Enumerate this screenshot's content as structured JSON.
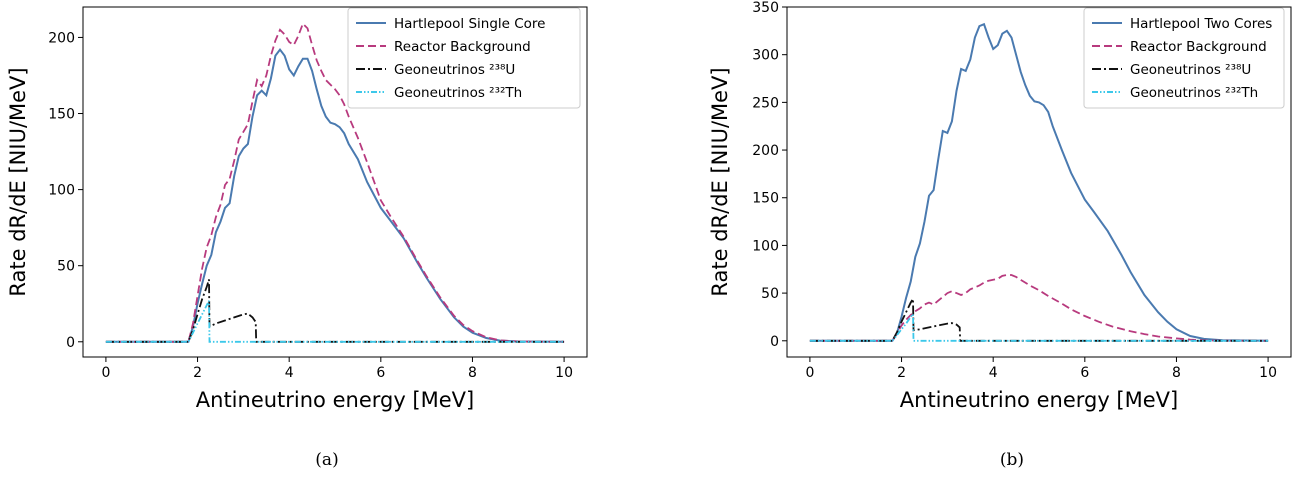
{
  "colors": {
    "signal": "#4a7ab0",
    "reactor": "#b83a7e",
    "uranium": "#111111",
    "thorium": "#3cc8ea"
  },
  "chart_data": [
    {
      "type": "line",
      "caption": "(a)",
      "xlabel": "Antineutrino energy [MeV]",
      "ylabel": "Rate dR/dE [NIU/MeV]",
      "xlim": [
        -0.5,
        10.5
      ],
      "ylim": [
        -10,
        220
      ],
      "xticks": [
        0,
        2,
        4,
        6,
        8,
        10
      ],
      "yticks": [
        0,
        50,
        100,
        150,
        200
      ],
      "grid": false,
      "legend_position": "top-right",
      "series": [
        {
          "name": "Hartlepool Single Core",
          "color_key": "signal",
          "style": "solid",
          "points": [
            [
              0,
              0
            ],
            [
              1.8,
              0
            ],
            [
              1.9,
              10
            ],
            [
              2.0,
              25
            ],
            [
              2.1,
              38
            ],
            [
              2.2,
              50
            ],
            [
              2.3,
              57
            ],
            [
              2.4,
              72
            ],
            [
              2.5,
              79
            ],
            [
              2.6,
              88
            ],
            [
              2.7,
              91
            ],
            [
              2.8,
              109
            ],
            [
              2.9,
              122
            ],
            [
              3.0,
              127
            ],
            [
              3.1,
              130
            ],
            [
              3.2,
              148
            ],
            [
              3.3,
              162
            ],
            [
              3.4,
              165
            ],
            [
              3.5,
              162
            ],
            [
              3.6,
              173
            ],
            [
              3.7,
              188
            ],
            [
              3.8,
              192
            ],
            [
              3.9,
              188
            ],
            [
              4.0,
              179
            ],
            [
              4.1,
              175
            ],
            [
              4.2,
              181
            ],
            [
              4.3,
              186
            ],
            [
              4.4,
              186
            ],
            [
              4.5,
              178
            ],
            [
              4.6,
              166
            ],
            [
              4.7,
              155
            ],
            [
              4.8,
              148
            ],
            [
              4.9,
              144
            ],
            [
              5.0,
              143
            ],
            [
              5.1,
              141
            ],
            [
              5.2,
              137
            ],
            [
              5.3,
              130
            ],
            [
              5.5,
              120
            ],
            [
              5.7,
              105
            ],
            [
              6.0,
              88
            ],
            [
              6.2,
              80
            ],
            [
              6.5,
              68
            ],
            [
              6.8,
              52
            ],
            [
              7.0,
              42
            ],
            [
              7.3,
              28
            ],
            [
              7.6,
              16
            ],
            [
              7.8,
              10
            ],
            [
              8.0,
              6
            ],
            [
              8.3,
              2.5
            ],
            [
              8.6,
              0.8
            ],
            [
              9.0,
              0.2
            ],
            [
              10,
              0
            ]
          ]
        },
        {
          "name": "Reactor Background",
          "color_key": "reactor",
          "style": "dashed",
          "points": [
            [
              0,
              0
            ],
            [
              1.8,
              0
            ],
            [
              1.9,
              12
            ],
            [
              2.0,
              30
            ],
            [
              2.1,
              48
            ],
            [
              2.2,
              62
            ],
            [
              2.3,
              70
            ],
            [
              2.4,
              82
            ],
            [
              2.5,
              90
            ],
            [
              2.6,
              103
            ],
            [
              2.7,
              107
            ],
            [
              2.8,
              119
            ],
            [
              2.9,
              133
            ],
            [
              3.0,
              138
            ],
            [
              3.1,
              143
            ],
            [
              3.2,
              158
            ],
            [
              3.3,
              172
            ],
            [
              3.4,
              168
            ],
            [
              3.5,
              175
            ],
            [
              3.6,
              188
            ],
            [
              3.7,
              198
            ],
            [
              3.8,
              205
            ],
            [
              3.9,
              202
            ],
            [
              4.0,
              197
            ],
            [
              4.1,
              195
            ],
            [
              4.2,
              201
            ],
            [
              4.3,
              209
            ],
            [
              4.4,
              206
            ],
            [
              4.5,
              195
            ],
            [
              4.6,
              185
            ],
            [
              4.7,
              178
            ],
            [
              4.8,
              172
            ],
            [
              4.9,
              169
            ],
            [
              5.0,
              166
            ],
            [
              5.1,
              162
            ],
            [
              5.2,
              156
            ],
            [
              5.3,
              148
            ],
            [
              5.5,
              134
            ],
            [
              5.7,
              118
            ],
            [
              6.0,
              93
            ],
            [
              6.2,
              83
            ],
            [
              6.5,
              69
            ],
            [
              6.8,
              53
            ],
            [
              7.0,
              43
            ],
            [
              7.3,
              29
            ],
            [
              7.6,
              17
            ],
            [
              7.8,
              11
            ],
            [
              8.0,
              7
            ],
            [
              8.3,
              3
            ],
            [
              8.6,
              1
            ],
            [
              9.0,
              0.2
            ],
            [
              10,
              0
            ]
          ]
        },
        {
          "name": "Geoneutrinos ²³⁸U",
          "color_key": "uranium",
          "style": "dashdot",
          "points": [
            [
              0,
              0
            ],
            [
              1.8,
              0
            ],
            [
              1.9,
              8
            ],
            [
              2.0,
              18
            ],
            [
              2.1,
              28
            ],
            [
              2.2,
              36
            ],
            [
              2.25,
              41
            ],
            [
              2.26,
              10
            ],
            [
              2.4,
              12
            ],
            [
              2.6,
              14
            ],
            [
              2.8,
              16
            ],
            [
              3.0,
              18
            ],
            [
              3.1,
              18.5
            ],
            [
              3.2,
              16
            ],
            [
              3.27,
              13
            ],
            [
              3.28,
              0
            ],
            [
              10,
              0
            ]
          ]
        },
        {
          "name": "Geoneutrinos ²³²Th",
          "color_key": "thorium",
          "style": "dashdotdot",
          "points": [
            [
              0,
              0
            ],
            [
              1.8,
              0
            ],
            [
              1.9,
              6
            ],
            [
              2.0,
              12
            ],
            [
              2.1,
              18
            ],
            [
              2.2,
              24
            ],
            [
              2.25,
              27
            ],
            [
              2.26,
              0
            ],
            [
              10,
              0
            ]
          ]
        }
      ]
    },
    {
      "type": "line",
      "caption": "(b)",
      "xlabel": "Antineutrino energy [MeV]",
      "ylabel": "Rate dR/dE [NIU/MeV]",
      "xlim": [
        -0.5,
        10.5
      ],
      "ylim": [
        -17,
        350
      ],
      "xticks": [
        0,
        2,
        4,
        6,
        8,
        10
      ],
      "yticks": [
        0,
        50,
        100,
        150,
        200,
        250,
        300,
        350
      ],
      "grid": false,
      "legend_position": "top-right",
      "series": [
        {
          "name": "Hartlepool Two Cores",
          "color_key": "signal",
          "style": "solid",
          "points": [
            [
              0,
              0
            ],
            [
              1.8,
              0
            ],
            [
              1.9,
              8
            ],
            [
              2.0,
              25
            ],
            [
              2.1,
              45
            ],
            [
              2.2,
              62
            ],
            [
              2.3,
              88
            ],
            [
              2.4,
              102
            ],
            [
              2.5,
              125
            ],
            [
              2.6,
              152
            ],
            [
              2.7,
              158
            ],
            [
              2.8,
              190
            ],
            [
              2.9,
              220
            ],
            [
              3.0,
              218
            ],
            [
              3.1,
              230
            ],
            [
              3.2,
              262
            ],
            [
              3.3,
              285
            ],
            [
              3.4,
              283
            ],
            [
              3.5,
              295
            ],
            [
              3.6,
              318
            ],
            [
              3.7,
              330
            ],
            [
              3.8,
              332
            ],
            [
              3.9,
              318
            ],
            [
              4.0,
              306
            ],
            [
              4.1,
              310
            ],
            [
              4.2,
              322
            ],
            [
              4.3,
              325
            ],
            [
              4.4,
              318
            ],
            [
              4.5,
              300
            ],
            [
              4.6,
              282
            ],
            [
              4.7,
              268
            ],
            [
              4.8,
              257
            ],
            [
              4.9,
              251
            ],
            [
              5.0,
              250
            ],
            [
              5.1,
              247
            ],
            [
              5.2,
              240
            ],
            [
              5.3,
              225
            ],
            [
              5.5,
              200
            ],
            [
              5.7,
              176
            ],
            [
              6.0,
              148
            ],
            [
              6.2,
              135
            ],
            [
              6.5,
              115
            ],
            [
              6.8,
              90
            ],
            [
              7.0,
              72
            ],
            [
              7.3,
              48
            ],
            [
              7.6,
              30
            ],
            [
              7.8,
              20
            ],
            [
              8.0,
              12
            ],
            [
              8.3,
              5
            ],
            [
              8.6,
              2
            ],
            [
              9.0,
              0.5
            ],
            [
              10,
              0
            ]
          ]
        },
        {
          "name": "Reactor Background",
          "color_key": "reactor",
          "style": "dashed",
          "points": [
            [
              0,
              0
            ],
            [
              1.8,
              0
            ],
            [
              1.9,
              8
            ],
            [
              2.0,
              16
            ],
            [
              2.1,
              22
            ],
            [
              2.2,
              27
            ],
            [
              2.3,
              31
            ],
            [
              2.4,
              34
            ],
            [
              2.5,
              38
            ],
            [
              2.6,
              40
            ],
            [
              2.7,
              38
            ],
            [
              2.8,
              42
            ],
            [
              2.9,
              46
            ],
            [
              3.0,
              50
            ],
            [
              3.1,
              52
            ],
            [
              3.2,
              50
            ],
            [
              3.3,
              48
            ],
            [
              3.4,
              50
            ],
            [
              3.5,
              54
            ],
            [
              3.6,
              56
            ],
            [
              3.7,
              58
            ],
            [
              3.8,
              61
            ],
            [
              3.9,
              63
            ],
            [
              4.0,
              64
            ],
            [
              4.1,
              65
            ],
            [
              4.2,
              68
            ],
            [
              4.3,
              69
            ],
            [
              4.4,
              69
            ],
            [
              4.5,
              67
            ],
            [
              4.6,
              64
            ],
            [
              4.7,
              61
            ],
            [
              4.8,
              58
            ],
            [
              5.0,
              53
            ],
            [
              5.2,
              47
            ],
            [
              5.5,
              39
            ],
            [
              5.7,
              33
            ],
            [
              6.0,
              26
            ],
            [
              6.3,
              20
            ],
            [
              6.6,
              15
            ],
            [
              7.0,
              10
            ],
            [
              7.3,
              7
            ],
            [
              7.6,
              4.5
            ],
            [
              8.0,
              2.5
            ],
            [
              8.3,
              1.2
            ],
            [
              8.6,
              0.5
            ],
            [
              9.0,
              0.1
            ],
            [
              10,
              0
            ]
          ]
        },
        {
          "name": "Geoneutrinos ²³⁸U",
          "color_key": "uranium",
          "style": "dashdot",
          "points": [
            [
              0,
              0
            ],
            [
              1.8,
              0
            ],
            [
              1.9,
              9
            ],
            [
              2.0,
              20
            ],
            [
              2.1,
              30
            ],
            [
              2.2,
              40
            ],
            [
              2.25,
              44
            ],
            [
              2.26,
              11
            ],
            [
              2.4,
              12
            ],
            [
              2.6,
              14
            ],
            [
              2.8,
              16
            ],
            [
              3.0,
              18
            ],
            [
              3.1,
              18.5
            ],
            [
              3.2,
              17
            ],
            [
              3.27,
              14
            ],
            [
              3.28,
              0
            ],
            [
              10,
              0
            ]
          ]
        },
        {
          "name": "Geoneutrinos ²³²Th",
          "color_key": "thorium",
          "style": "dashdotdot",
          "points": [
            [
              0,
              0
            ],
            [
              1.8,
              0
            ],
            [
              1.9,
              6
            ],
            [
              2.0,
              12
            ],
            [
              2.1,
              18
            ],
            [
              2.2,
              25
            ],
            [
              2.25,
              28
            ],
            [
              2.26,
              0
            ],
            [
              10,
              0
            ]
          ]
        }
      ]
    }
  ]
}
